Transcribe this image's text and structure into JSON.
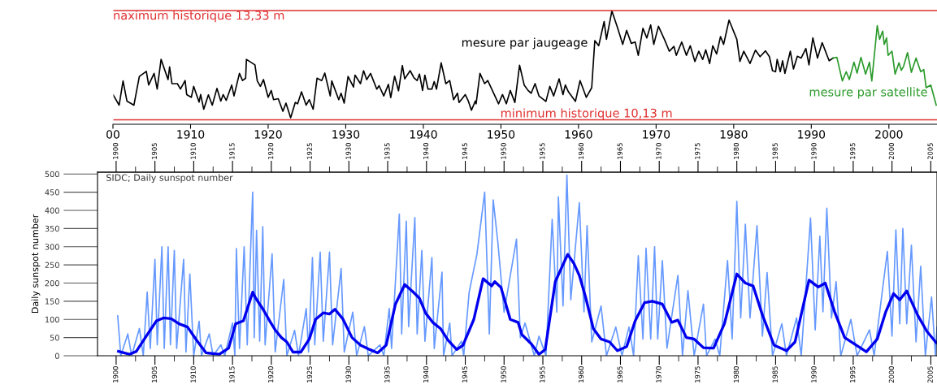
{
  "chart_data": [
    {
      "type": "line",
      "xlim": [
        1900,
        2006.2
      ],
      "ylim": [
        10.0,
        13.64
      ],
      "tick_labels": "x",
      "grid": false,
      "xticks": [
        {
          "value": 1900,
          "label": "00"
        },
        1910,
        1920,
        1930,
        1940,
        1950,
        1960,
        1970,
        1980,
        1990,
        2000
      ],
      "ref_lines": [
        {
          "axis": "y",
          "value": 13.33,
          "label": "naximum historique 13,33 m",
          "color": "#e03030"
        },
        {
          "axis": "y",
          "value": 10.13,
          "label": "minimum historique 10,13 m",
          "color": "#e03030"
        }
      ],
      "series": [
        {
          "name": "mesure par jaugeage",
          "color": "#000000",
          "x": [
            1900.0,
            1900.8,
            1901.3,
            1901.8,
            1902.7,
            1903.4,
            1904.3,
            1904.6,
            1905.3,
            1905.7,
            1906.2,
            1907.1,
            1907.3,
            1907.6,
            1908.3,
            1908.7,
            1909.3,
            1909.5,
            1910.1,
            1910.4,
            1911.1,
            1911.3,
            1911.7,
            1912.3,
            1912.8,
            1913.4,
            1913.9,
            1914.2,
            1914.6,
            1915.3,
            1915.6,
            1916.3,
            1916.7,
            1917.1,
            1917.2,
            1918.3,
            1918.6,
            1919.0,
            1919.4,
            1920.0,
            1920.4,
            1920.7,
            1921.3,
            1921.9,
            1922.3,
            1922.9,
            1923.5,
            1923.8,
            1924.3,
            1924.9,
            1925.3,
            1925.8,
            1926.3,
            1926.9,
            1927.3,
            1928.0,
            1928.2,
            1929.1,
            1929.4,
            1929.8,
            1930.3,
            1931.0,
            1931.2,
            1931.9,
            1932.3,
            1932.7,
            1933.2,
            1934.0,
            1934.3,
            1934.9,
            1935.5,
            1935.8,
            1936.3,
            1936.8,
            1937.3,
            1937.6,
            1938.3,
            1938.8,
            1939.2,
            1939.5,
            1939.9,
            1940.2,
            1940.6,
            1941.1,
            1941.4,
            1941.7,
            1942.3,
            1942.9,
            1943.4,
            1943.9,
            1944.4,
            1944.6,
            1945.0,
            1945.4,
            1945.8,
            1946.2,
            1946.7,
            1946.8,
            1947.3,
            1947.9,
            1948.3,
            1949.7,
            1950.2,
            1950.7,
            1951.2,
            1951.8,
            1952.4,
            1953.0,
            1953.5,
            1953.9,
            1954.4,
            1954.9,
            1955.8,
            1956.3,
            1956.8,
            1957.5,
            1958.0,
            1958.3,
            1958.7,
            1959.6,
            1960.2,
            1961.0,
            1961.7,
            1962.1,
            1962.6,
            1963.3,
            1963.6,
            1964.3,
            1965.0,
            1965.7,
            1966.2,
            1966.8,
            1967.3,
            1967.7,
            1968.3,
            1968.8,
            1969.3,
            1969.7,
            1970.3,
            1971.1,
            1971.7,
            1972.3,
            1972.6,
            1973.3,
            1973.9,
            1974.4,
            1975.0,
            1975.5,
            1976.0,
            1976.4,
            1976.9,
            1977.3,
            1977.8,
            1978.3,
            1978.7,
            1979.4,
            1980.4,
            1980.8,
            1981.3,
            1982.1,
            1982.8,
            1983.4,
            1984.1,
            1984.6,
            1985.0,
            1985.4,
            1985.6,
            1986.0,
            1986.3,
            1986.6,
            1987.3,
            1987.7,
            1988.2,
            1988.7,
            1989.3,
            1989.7,
            1990.2,
            1990.8,
            1991.4,
            1992.3,
            1992.8
          ],
          "values": [
            10.87,
            10.56,
            11.27,
            10.68,
            10.56,
            11.4,
            11.55,
            11.15,
            11.49,
            11.03,
            11.9,
            11.31,
            11.68,
            11.19,
            11.19,
            11.03,
            11.28,
            10.87,
            10.79,
            11.11,
            10.65,
            10.87,
            10.44,
            10.86,
            10.56,
            11.05,
            10.68,
            10.87,
            10.7,
            11.15,
            10.83,
            11.49,
            11.28,
            11.35,
            11.9,
            11.74,
            11.27,
            11.11,
            11.31,
            10.79,
            10.99,
            10.72,
            10.75,
            10.38,
            10.62,
            10.19,
            10.64,
            10.6,
            10.95,
            10.56,
            10.72,
            10.44,
            11.35,
            11.28,
            11.5,
            10.83,
            11.27,
            10.72,
            10.91,
            10.62,
            11.4,
            11.09,
            11.44,
            11.19,
            11.57,
            11.31,
            11.49,
            11.03,
            11.13,
            10.83,
            11.17,
            10.78,
            11.41,
            10.98,
            11.72,
            11.33,
            11.57,
            11.36,
            11.28,
            11.47,
            10.99,
            11.44,
            11.03,
            11.03,
            11.25,
            11.03,
            11.8,
            11.19,
            11.28,
            10.72,
            10.91,
            10.64,
            10.75,
            10.87,
            10.68,
            10.41,
            10.68,
            10.6,
            11.49,
            11.19,
            11.28,
            10.6,
            10.87,
            10.6,
            10.99,
            10.64,
            11.73,
            11.15,
            10.99,
            10.91,
            11.19,
            10.83,
            10.67,
            11.11,
            10.83,
            11.33,
            10.87,
            11.15,
            10.95,
            10.67,
            11.28,
            10.79,
            11.07,
            12.45,
            12.3,
            13.01,
            12.49,
            13.32,
            12.85,
            12.34,
            12.75,
            12.37,
            12.41,
            12.02,
            12.81,
            12.53,
            12.91,
            12.34,
            12.87,
            12.47,
            12.14,
            12.28,
            12.02,
            12.41,
            12.02,
            12.3,
            11.84,
            12.14,
            11.9,
            12.18,
            11.78,
            12.3,
            12.06,
            12.57,
            12.34,
            13.05,
            12.49,
            11.84,
            12.14,
            11.78,
            12.17,
            11.98,
            12.15,
            11.98,
            11.57,
            11.54,
            11.9,
            11.54,
            11.86,
            11.49,
            12.14,
            11.62,
            11.99,
            11.94,
            12.22,
            11.74,
            12.53,
            11.94,
            12.39,
            11.86,
            11.94
          ]
        },
        {
          "name": "mesure par satellite",
          "color": "#2a9a2a",
          "x": [
            1992.8,
            1993.3,
            1994.0,
            1994.5,
            1994.9,
            1995.5,
            1995.9,
            1996.4,
            1997.0,
            1997.5,
            1997.8,
            1998.5,
            1998.8,
            1999.2,
            1999.4,
            1999.7,
            1999.9,
            2000.4,
            2000.8,
            2001.3,
            2001.6,
            2001.9,
            2002.4,
            2002.9,
            2003.5,
            2004.1,
            2004.5,
            2004.8,
            2005.4,
            2006.1
          ],
          "values": [
            11.94,
            11.96,
            11.27,
            11.54,
            11.31,
            11.82,
            11.5,
            11.96,
            11.47,
            11.82,
            11.27,
            12.89,
            12.49,
            12.73,
            12.34,
            12.53,
            12.02,
            12.14,
            11.47,
            11.8,
            11.58,
            11.7,
            12.1,
            11.52,
            11.94,
            11.54,
            11.6,
            11.07,
            11.15,
            10.56
          ]
        }
      ]
    },
    {
      "type": "line",
      "xlim": [
        1897.6,
        2005.8
      ],
      "x2lim": [
        1897.6,
        2005.8
      ],
      "ylim": [
        0,
        505
      ],
      "grid": false,
      "ylabel": "Daily sunspot number",
      "annotations": [
        "SIDC; Daily sunspot number"
      ],
      "xticks": [
        1900,
        {
          "value": 1902.5,
          "label": null
        },
        1905,
        {
          "value": 1907.5,
          "label": null
        },
        1910,
        {
          "value": 1912.5,
          "label": null
        },
        1915,
        {
          "value": 1917.5,
          "label": null
        },
        1920,
        {
          "value": 1922.5,
          "label": null
        },
        1925,
        {
          "value": 1927.5,
          "label": null
        },
        1930,
        {
          "value": 1932.5,
          "label": null
        },
        1935,
        {
          "value": 1937.5,
          "label": null
        },
        1940,
        {
          "value": 1942.5,
          "label": null
        },
        1945,
        {
          "value": 1947.5,
          "label": null
        },
        1950,
        {
          "value": 1952.5,
          "label": null
        },
        1955,
        {
          "value": 1957.5,
          "label": null
        },
        1960,
        {
          "value": 1962.5,
          "label": null
        },
        1965,
        {
          "value": 1967.5,
          "label": null
        },
        1970,
        {
          "value": 1972.5,
          "label": null
        },
        1975,
        {
          "value": 1977.5,
          "label": null
        },
        1980,
        {
          "value": 1982.5,
          "label": null
        },
        1985,
        {
          "value": 1987.5,
          "label": null
        },
        1990,
        {
          "value": 1992.5,
          "label": null
        },
        1995,
        {
          "value": 1997.5,
          "label": null
        },
        2000,
        {
          "value": 2002.5,
          "label": null
        },
        2005
      ],
      "x2ticks": [
        1900,
        {
          "value": 1902.5,
          "label": null
        },
        1905,
        {
          "value": 1907.5,
          "label": null
        },
        1910,
        {
          "value": 1912.5,
          "label": null
        },
        1915,
        {
          "value": 1917.5,
          "label": null
        },
        1920,
        {
          "value": 1922.5,
          "label": null
        },
        1925,
        {
          "value": 1927.5,
          "label": null
        },
        1930,
        {
          "value": 1932.5,
          "label": null
        },
        1935,
        {
          "value": 1937.5,
          "label": null
        },
        1940,
        {
          "value": 1942.5,
          "label": null
        },
        1945,
        {
          "value": 1947.5,
          "label": null
        },
        1950,
        {
          "value": 1952.5,
          "label": null
        },
        1955,
        {
          "value": 1957.5,
          "label": null
        },
        1960,
        {
          "value": 1962.5,
          "label": null
        },
        1965,
        {
          "value": 1967.5,
          "label": null
        },
        1970,
        {
          "value": 1972.5,
          "label": null
        },
        1975,
        {
          "value": 1977.5,
          "label": null
        },
        1980,
        {
          "value": 1982.5,
          "label": null
        },
        1985,
        {
          "value": 1987.5,
          "label": null
        },
        1990,
        {
          "value": 1992.5,
          "label": null
        },
        1995,
        {
          "value": 1997.5,
          "label": null
        },
        2000,
        {
          "value": 2002.5,
          "label": null
        },
        2005
      ],
      "yticks": [
        0,
        50,
        100,
        150,
        200,
        250,
        300,
        350,
        400,
        450,
        500
      ],
      "series": [
        {
          "color": "#6699ff",
          "x": [
            1900.2,
            1900.6,
            1901.5,
            1902.0,
            1903.0,
            1903.5,
            1904.0,
            1904.4,
            1905.0,
            1905.3,
            1905.9,
            1906.2,
            1906.7,
            1907.0,
            1907.5,
            1907.8,
            1908.7,
            1909.0,
            1909.5,
            1910.0,
            1910.7,
            1911.0,
            1912.0,
            1912.5,
            1913.5,
            1914.0,
            1915.0,
            1915.3,
            1915.5,
            1915.9,
            1916.5,
            1916.9,
            1917.6,
            1917.8,
            1918.1,
            1918.5,
            1918.9,
            1919.2,
            1920.1,
            1920.5,
            1921.6,
            1922.0,
            1923.0,
            1923.5,
            1924.5,
            1924.8,
            1925.3,
            1925.6,
            1926.3,
            1926.7,
            1927.5,
            1927.9,
            1929.0,
            1929.4,
            1930.5,
            1931.0,
            1932.0,
            1932.5,
            1934.0,
            1934.5,
            1935.2,
            1935.5,
            1936.5,
            1936.8,
            1937.4,
            1937.7,
            1938.5,
            1938.8,
            1939.4,
            1939.8,
            1940.7,
            1941.0,
            1942.0,
            1942.2,
            1943.0,
            1943.3,
            1944.5,
            1944.8,
            1945.5,
            1946.5,
            1947.5,
            1948.1,
            1948.6,
            1949.2,
            1950.0,
            1951.6,
            1952.1,
            1952.7,
            1953.9,
            1954.5,
            1955.4,
            1956.2,
            1956.8,
            1957.0,
            1957.6,
            1958.1,
            1958.6,
            1959.7,
            1960.3,
            1960.7,
            1961.3,
            1962.5,
            1963.2,
            1964.4,
            1965.2,
            1966.1,
            1966.7,
            1967.3,
            1967.9,
            1968.3,
            1968.9,
            1969.4,
            1969.8,
            1970.4,
            1971.0,
            1972.4,
            1973.0,
            1973.7,
            1974.5,
            1975.7,
            1976.1,
            1977.2,
            1977.8,
            1978.8,
            1979.4,
            1980.0,
            1980.5,
            1981.1,
            1981.7,
            1982.6,
            1983.3,
            1983.9,
            1984.6,
            1985.8,
            1986.4,
            1987.7,
            1988.3,
            1989.5,
            1990.1,
            1990.7,
            1991.1,
            1991.6,
            1992.2,
            1992.8,
            1993.4,
            1994.7,
            1995.5,
            1997.1,
            1997.7,
            1999.4,
            2000.0,
            2000.5,
            2001.0,
            2001.4,
            2001.9,
            2002.5,
            2003.1,
            2003.7,
            2004.3,
            2005.1,
            2005.6,
            2005.8
          ],
          "values": [
            110,
            0,
            60,
            0,
            75,
            0,
            175,
            20,
            265,
            30,
            300,
            20,
            300,
            30,
            290,
            20,
            265,
            10,
            225,
            0,
            95,
            0,
            60,
            0,
            30,
            0,
            90,
            0,
            295,
            20,
            300,
            30,
            450,
            50,
            345,
            40,
            355,
            30,
            280,
            10,
            210,
            0,
            70,
            0,
            130,
            10,
            270,
            30,
            285,
            40,
            285,
            30,
            240,
            10,
            120,
            0,
            80,
            0,
            30,
            0,
            130,
            20,
            390,
            60,
            370,
            80,
            380,
            60,
            290,
            40,
            270,
            20,
            230,
            0,
            90,
            0,
            40,
            0,
            175,
            279,
            450,
            60,
            429,
            312,
            120,
            321,
            50,
            90,
            0,
            54,
            0,
            375,
            120,
            437,
            137,
            497,
            154,
            421,
            121,
            358,
            38,
            137,
            0,
            79,
            0,
            79,
            0,
            275,
            46,
            296,
            46,
            300,
            46,
            262,
            21,
            221,
            0,
            179,
            0,
            142,
            0,
            46,
            0,
            262,
            46,
            425,
            104,
            362,
            104,
            358,
            54,
            229,
            0,
            88,
            0,
            104,
            0,
            379,
            71,
            329,
            121,
            406,
            104,
            204,
            0,
            100,
            0,
            71,
            0,
            287,
            54,
            346,
            88,
            350,
            88,
            304,
            38,
            246,
            0,
            162,
            0,
            79
          ]
        },
        {
          "color": "#0000ee",
          "x": [
            1900.3,
            1901.7,
            1902.6,
            1904.0,
            1905.2,
            1906.1,
            1907.1,
            1908.1,
            1909.2,
            1910.4,
            1911.6,
            1913.3,
            1914.5,
            1915.4,
            1916.4,
            1917.6,
            1918.0,
            1918.9,
            1919.9,
            1920.5,
            1921.3,
            1922.0,
            1922.8,
            1923.8,
            1924.9,
            1925.7,
            1926.7,
            1927.5,
            1928.2,
            1929.2,
            1930.4,
            1931.5,
            1932.7,
            1933.7,
            1934.8,
            1936.0,
            1937.2,
            1938.1,
            1939.1,
            1939.9,
            1940.8,
            1941.8,
            1942.8,
            1943.9,
            1944.7,
            1946.1,
            1947.3,
            1948.4,
            1948.8,
            1949.6,
            1950.8,
            1951.8,
            1952.3,
            1953.5,
            1954.5,
            1955.3,
            1956.6,
            1958.2,
            1959.0,
            1959.7,
            1960.5,
            1961.5,
            1962.5,
            1963.6,
            1964.6,
            1965.8,
            1966.9,
            1968.1,
            1969.1,
            1970.4,
            1971.6,
            1972.4,
            1973.5,
            1974.5,
            1975.7,
            1977.0,
            1978.4,
            1980.0,
            1981.1,
            1982.1,
            1983.3,
            1984.8,
            1986.4,
            1987.5,
            1989.3,
            1990.5,
            1991.4,
            1992.6,
            1993.9,
            1995.1,
            1996.7,
            1998.1,
            1999.2,
            2000.2,
            2001.0,
            2001.9,
            2003.3,
            2004.5,
            2005.7
          ],
          "values": [
            12,
            4,
            12,
            58,
            96,
            104,
            102,
            88,
            79,
            42,
            8,
            4,
            21,
            88,
            96,
            175,
            158,
            129,
            92,
            71,
            50,
            38,
            10,
            10,
            46,
            100,
            118,
            115,
            128,
            102,
            50,
            29,
            17,
            8,
            29,
            142,
            196,
            179,
            158,
            117,
            92,
            75,
            42,
            17,
            29,
            100,
            212,
            192,
            204,
            188,
            100,
            92,
            58,
            33,
            4,
            17,
            204,
            279,
            254,
            221,
            162,
            75,
            46,
            38,
            14,
            25,
            96,
            146,
            150,
            142,
            92,
            98,
            50,
            46,
            22,
            21,
            88,
            225,
            200,
            192,
            112,
            29,
            14,
            38,
            208,
            189,
            200,
            121,
            50,
            33,
            11,
            46,
            121,
            171,
            154,
            178,
            112,
            67,
            36
          ]
        }
      ]
    }
  ]
}
